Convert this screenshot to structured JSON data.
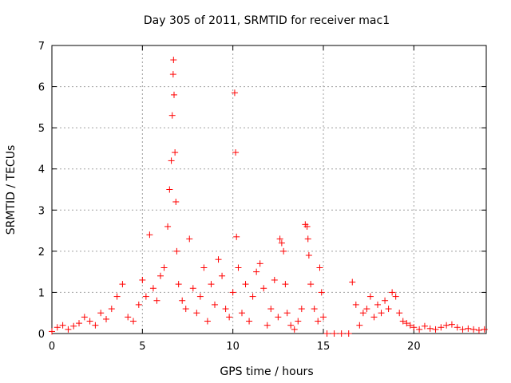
{
  "chart_data": {
    "type": "scatter",
    "title": "Day 305 of 2011, SRMTID for receiver mac1",
    "xlabel": "GPS time / hours",
    "ylabel": "SRMTID / TECUs",
    "xlim": [
      0,
      24
    ],
    "ylim": [
      0,
      7
    ],
    "xticks": [
      0,
      5,
      10,
      15,
      20
    ],
    "yticks": [
      0,
      1,
      2,
      3,
      4,
      5,
      6,
      7
    ],
    "grid": true,
    "marker": "+",
    "color": "#ff0000",
    "series": [
      {
        "name": "SRMTID",
        "x": [
          0.0,
          0.3,
          0.6,
          0.9,
          1.2,
          1.5,
          1.8,
          2.1,
          2.4,
          2.7,
          3.0,
          3.3,
          3.6,
          3.9,
          4.2,
          4.5,
          4.8,
          5.0,
          5.2,
          5.4,
          5.6,
          5.8,
          6.0,
          6.2,
          6.4,
          6.5,
          6.6,
          6.65,
          6.7,
          6.72,
          6.75,
          6.8,
          6.85,
          6.9,
          7.0,
          7.2,
          7.4,
          7.6,
          7.8,
          8.0,
          8.2,
          8.4,
          8.6,
          8.8,
          9.0,
          9.2,
          9.4,
          9.6,
          9.8,
          10.0,
          10.1,
          10.15,
          10.2,
          10.3,
          10.5,
          10.7,
          10.9,
          11.1,
          11.3,
          11.5,
          11.7,
          11.9,
          12.1,
          12.3,
          12.5,
          12.6,
          12.7,
          12.8,
          12.9,
          13.0,
          13.2,
          13.4,
          13.6,
          13.8,
          14.0,
          14.1,
          14.15,
          14.2,
          14.3,
          14.5,
          14.7,
          14.8,
          14.9,
          15.0,
          15.2,
          15.6,
          16.0,
          16.4,
          16.6,
          16.8,
          17.0,
          17.2,
          17.4,
          17.6,
          17.8,
          18.0,
          18.2,
          18.4,
          18.6,
          18.8,
          19.0,
          19.2,
          19.4,
          19.6,
          19.8,
          20.0,
          20.3,
          20.6,
          20.9,
          21.2,
          21.5,
          21.8,
          22.1,
          22.4,
          22.7,
          23.0,
          23.3,
          23.6,
          23.9
        ],
        "y": [
          0.05,
          0.15,
          0.2,
          0.1,
          0.18,
          0.25,
          0.4,
          0.3,
          0.2,
          0.5,
          0.35,
          0.6,
          0.9,
          1.2,
          0.4,
          0.3,
          0.7,
          1.3,
          0.9,
          2.4,
          1.1,
          0.8,
          1.4,
          1.6,
          2.6,
          3.5,
          4.2,
          5.3,
          6.3,
          6.65,
          5.8,
          4.4,
          3.2,
          2.0,
          1.2,
          0.8,
          0.6,
          2.3,
          1.1,
          0.5,
          0.9,
          1.6,
          0.3,
          1.2,
          0.7,
          1.8,
          1.4,
          0.6,
          0.4,
          1.0,
          5.85,
          4.4,
          2.35,
          1.6,
          0.5,
          1.2,
          0.3,
          0.9,
          1.5,
          1.7,
          1.1,
          0.2,
          0.6,
          1.3,
          0.4,
          2.3,
          2.2,
          2.0,
          1.2,
          0.5,
          0.2,
          0.1,
          0.3,
          0.6,
          2.65,
          2.6,
          2.3,
          1.9,
          1.2,
          0.6,
          0.3,
          1.6,
          1.0,
          0.4,
          0.0,
          0.0,
          0.0,
          0.0,
          1.25,
          0.7,
          0.2,
          0.5,
          0.6,
          0.9,
          0.4,
          0.7,
          0.5,
          0.8,
          0.6,
          1.0,
          0.9,
          0.5,
          0.3,
          0.25,
          0.2,
          0.15,
          0.1,
          0.18,
          0.12,
          0.1,
          0.15,
          0.2,
          0.22,
          0.15,
          0.1,
          0.12,
          0.1,
          0.08,
          0.1
        ]
      }
    ]
  }
}
